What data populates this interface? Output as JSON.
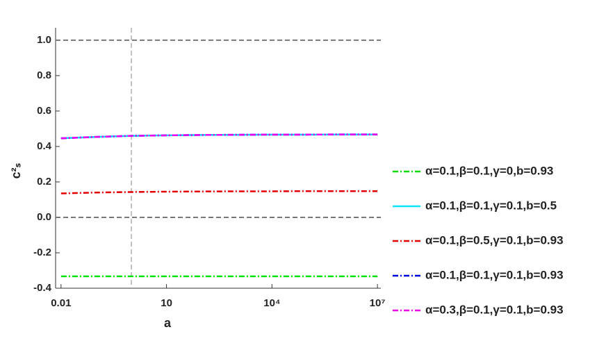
{
  "chart_data": {
    "type": "line",
    "x_label": "a",
    "y_label": "c²ₛ",
    "x": [
      0.01,
      0.1,
      1,
      10,
      100,
      1000,
      10000,
      100000,
      1000000,
      10000000
    ],
    "series": [
      {
        "name": "α=0.1,β=0.1,γ=0,b=0.93",
        "color": "#00e000",
        "dash": "dashdot",
        "values": [
          -0.333,
          -0.333,
          -0.333,
          -0.333,
          -0.333,
          -0.333,
          -0.333,
          -0.333,
          -0.333,
          -0.333
        ]
      },
      {
        "name": "α=0.1,β=0.1,γ=0.1,b=0.5",
        "color": "#00e5ff",
        "dash": "solid",
        "values": [
          0.446,
          0.454,
          0.46,
          0.463,
          0.465,
          0.466,
          0.467,
          0.467,
          0.468,
          0.468
        ]
      },
      {
        "name": "α=0.1,β=0.5,γ=0.1,b=0.93",
        "color": "#e00000",
        "dash": "dashdot",
        "values": [
          0.135,
          0.14,
          0.143,
          0.145,
          0.146,
          0.147,
          0.147,
          0.148,
          0.148,
          0.148
        ]
      },
      {
        "name": "α=0.1,β=0.1,γ=0.1,b=0.93",
        "color": "#0000dd",
        "dash": "dashdot",
        "values": [
          0.446,
          0.454,
          0.46,
          0.463,
          0.465,
          0.466,
          0.467,
          0.467,
          0.468,
          0.468
        ]
      },
      {
        "name": "α=0.3,β=0.1,γ=0.1,b=0.93",
        "color": "#ee00ee",
        "dash": "dashdot",
        "values": [
          0.446,
          0.454,
          0.46,
          0.463,
          0.465,
          0.466,
          0.467,
          0.467,
          0.468,
          0.468
        ]
      }
    ],
    "xscale": "log",
    "xlim": [
      0.007,
      12500000
    ],
    "xticks": [
      0.01,
      10,
      {
        "value": 10000,
        "label": "10⁴"
      },
      {
        "value": 10000000,
        "label": "10⁷"
      }
    ],
    "ylim": [
      -0.4,
      1.07
    ],
    "yticks": [
      -0.4,
      -0.2,
      {
        "value": 0,
        "label": "0.0"
      },
      0.2,
      0.4,
      0.6,
      0.8,
      {
        "value": 1,
        "label": "1.0"
      }
    ],
    "hlines": [
      0,
      1
    ],
    "vlines": [
      1
    ],
    "legend": "right"
  }
}
